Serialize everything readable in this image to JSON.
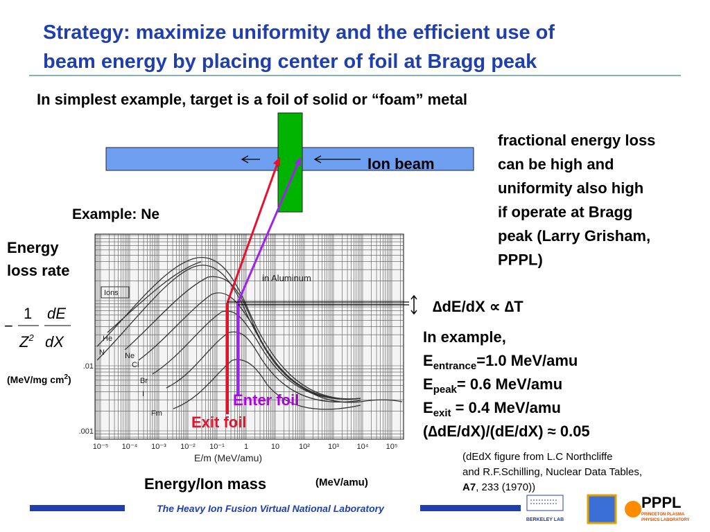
{
  "header": {
    "title": [
      "Strategy: maximize uniformity and the efficient use of",
      "beam energy by placing center of foil at Bragg peak"
    ],
    "subtitle": "In simplest example, target is a foil of solid or “foam” metal"
  },
  "diagram": {
    "beam_label": "Ion beam",
    "example": "Example: Ne",
    "y_label": [
      "Energy",
      "loss rate"
    ],
    "formula": {
      "minus": "−",
      "num": "1",
      "den": "Z",
      "den_exp": "2",
      "dE": "dE",
      "dX": "dX"
    },
    "units": {
      "text": "(MeV/mg cm",
      "sup": "2",
      "end": ")"
    },
    "enter_foil": "Enter foil",
    "exit_foil": "Exit foil",
    "x_label": "Energy/Ion mass",
    "x_units": "(MeV/amu)"
  },
  "plot": {
    "xticks": [
      "10⁻⁵",
      "10⁻⁴",
      "10⁻³",
      "10⁻²",
      "10⁻¹",
      "1",
      "10",
      "10²",
      "10³",
      "10⁴",
      "10⁵"
    ],
    "yticks": [
      ".01",
      ".001"
    ],
    "axis_label": "E/m  (MeV/amu)",
    "medium": "in   Aluminum",
    "legend_title": "Ions",
    "ions": [
      "He",
      "N",
      "Ne",
      "Cl",
      "Br",
      "I",
      "Fm"
    ]
  },
  "right": {
    "note": [
      "fractional energy loss",
      "can be high and",
      "uniformity also high",
      "if operate at Bragg",
      "peak (Larry Grisham,",
      "PPPL)"
    ],
    "relation": "∆dE/dX ∝ ∆T",
    "example_intro": "In example,",
    "energies": [
      {
        "e": "E",
        "sub": "entrance",
        "rest": "=1.0 MeV/amu"
      },
      {
        "e": "E",
        "sub": "peak",
        "rest": "= 0.6 MeV/amu"
      },
      {
        "e": "E",
        "sub": "exit",
        "rest": " = 0.4 MeV/amu"
      }
    ],
    "ratio": "(∆dE/dX)/(dE/dX) ≈ 0.05",
    "citation": [
      "(dEdX figure from L.C Northcliffe",
      "and R.F.Schilling, Nuclear Data Tables,"
    ],
    "citation_vol": "A7",
    "citation_end": ", 233 (1970))"
  },
  "footer": {
    "lab": "The Heavy Ion Fusion Virtual National Laboratory",
    "berkeley": "BERKELEY LAB",
    "pppl": "PPPL",
    "pppl_sub": [
      "PRINCETON PLASMA",
      "PHYSICS LABORATORY"
    ]
  }
}
